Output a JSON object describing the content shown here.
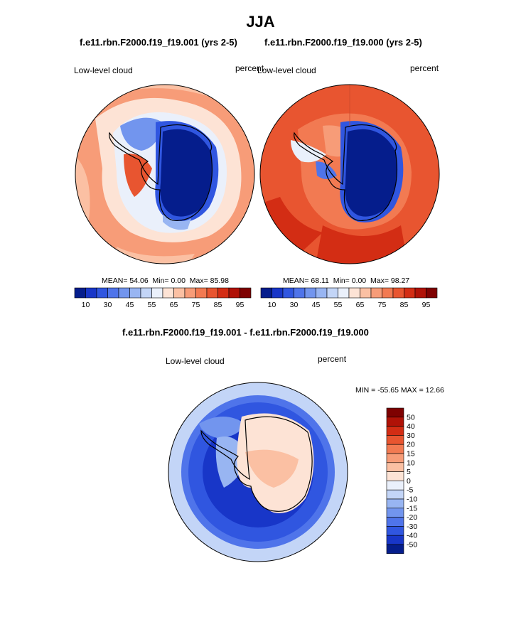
{
  "page": {
    "title": "JJA",
    "case_a_title": "f.e11.rbn.F2000.f19_f19.001 (yrs 2-5)",
    "case_b_title": "f.e11.rbn.F2000.f19_f19.000 (yrs 2-5)",
    "diff_title": "f.e11.rbn.F2000.f19_f19.001 - f.e11.rbn.F2000.f19_f19.000"
  },
  "chart_data": [
    {
      "type": "heatmap",
      "projection": "south-polar-stereographic",
      "variable": "Low-level cloud",
      "units": "percent",
      "title": "f.e11.rbn.F2000.f19_f19.001 (yrs 2-5)",
      "stats_text": {
        "mean": "MEAN= 54.06",
        "min": "Min= 0.00",
        "max": "Max= 85.98"
      },
      "stats": {
        "mean": 54.06,
        "min": 0.0,
        "max": 85.98
      },
      "colorbar": {
        "orientation": "horizontal",
        "levels": [
          10,
          20,
          30,
          40,
          45,
          50,
          55,
          60,
          65,
          70,
          75,
          80,
          85,
          90,
          95
        ],
        "tick_labels": [
          "10",
          "30",
          "45",
          "55",
          "65",
          "75",
          "85",
          "95"
        ],
        "colors": [
          "#051d8c",
          "#1836c8",
          "#3056e0",
          "#4f74ea",
          "#7295ee",
          "#98b5f2",
          "#c3d5f7",
          "#eaf0fb",
          "#fde3d5",
          "#fbc0a3",
          "#f79c78",
          "#f27a52",
          "#e85530",
          "#d32d14",
          "#b01207",
          "#7e0101"
        ]
      }
    },
    {
      "type": "heatmap",
      "projection": "south-polar-stereographic",
      "variable": "Low-level cloud",
      "units": "percent",
      "title": "f.e11.rbn.F2000.f19_f19.000 (yrs 2-5)",
      "stats_text": {
        "mean": "MEAN= 68.11",
        "min": "Min= 0.00",
        "max": "Max= 98.27"
      },
      "stats": {
        "mean": 68.11,
        "min": 0.0,
        "max": 98.27
      },
      "colorbar": {
        "orientation": "horizontal",
        "levels": [
          10,
          20,
          30,
          40,
          45,
          50,
          55,
          60,
          65,
          70,
          75,
          80,
          85,
          90,
          95
        ],
        "tick_labels": [
          "10",
          "30",
          "45",
          "55",
          "65",
          "75",
          "85",
          "95"
        ],
        "colors": [
          "#051d8c",
          "#1836c8",
          "#3056e0",
          "#4f74ea",
          "#7295ee",
          "#98b5f2",
          "#c3d5f7",
          "#eaf0fb",
          "#fde3d5",
          "#fbc0a3",
          "#f79c78",
          "#f27a52",
          "#e85530",
          "#d32d14",
          "#b01207",
          "#7e0101"
        ]
      }
    },
    {
      "type": "heatmap",
      "projection": "south-polar-stereographic",
      "variable": "Low-level cloud",
      "units": "percent",
      "title": "f.e11.rbn.F2000.f19_f19.001 - f.e11.rbn.F2000.f19_f19.000",
      "stats_text": "MIN = -55.65 MAX =  12.66",
      "stats": {
        "min": -55.65,
        "max": 12.66
      },
      "colorbar": {
        "orientation": "vertical",
        "tick_labels": [
          "50",
          "40",
          "30",
          "20",
          "15",
          "10",
          "5",
          "0",
          "-5",
          "-10",
          "-15",
          "-20",
          "-30",
          "-40",
          "-50"
        ],
        "colors": [
          "#7e0101",
          "#b01207",
          "#d32d14",
          "#e85530",
          "#f27a52",
          "#f79c78",
          "#fbc0a3",
          "#fde3d5",
          "#eaf0fb",
          "#c3d5f7",
          "#98b5f2",
          "#7295ee",
          "#4f74ea",
          "#3056e0",
          "#1836c8",
          "#051d8c"
        ]
      }
    }
  ]
}
